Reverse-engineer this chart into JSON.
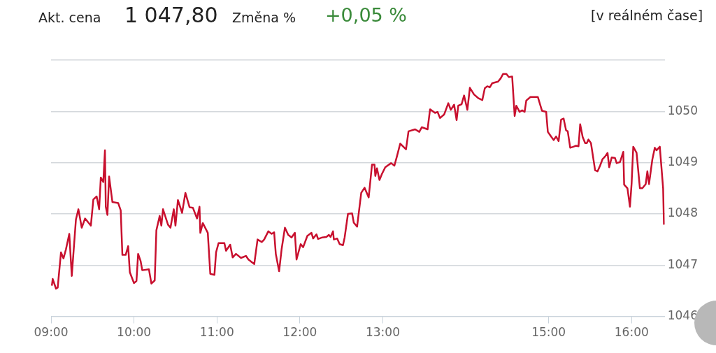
{
  "chart_data": {
    "type": "line",
    "annotations": [
      "Akt. cena",
      "1 047,80",
      "Změna %",
      "+0,05 %",
      "[v reálném čase]"
    ],
    "series": [
      {
        "color": "#c8102e",
        "x": [
          9.01,
          9.02,
          9.06,
          9.08,
          9.12,
          9.15,
          9.18,
          9.22,
          9.25,
          9.3,
          9.33,
          9.37,
          9.41,
          9.48,
          9.51,
          9.55,
          9.58,
          9.6,
          9.63,
          9.65,
          9.66,
          9.68,
          9.7,
          9.74,
          9.81,
          9.84,
          9.86,
          9.9,
          9.93,
          9.95,
          10.0,
          10.03,
          10.05,
          10.08,
          10.1,
          10.18,
          10.21,
          10.25,
          10.27,
          10.31,
          10.33,
          10.35,
          10.41,
          10.44,
          10.48,
          10.5,
          10.53,
          10.58,
          10.62,
          10.67,
          10.71,
          10.76,
          10.79,
          10.8,
          10.83,
          10.89,
          10.92,
          10.97,
          10.99,
          11.02,
          11.09,
          11.11,
          11.16,
          11.19,
          11.23,
          11.29,
          11.35,
          11.38,
          11.45,
          11.49,
          11.54,
          11.57,
          11.62,
          11.66,
          11.69,
          11.71,
          11.75,
          11.78,
          11.82,
          11.86,
          11.9,
          11.94,
          11.96,
          12.01,
          12.04,
          12.09,
          12.14,
          12.16,
          12.2,
          12.22,
          12.27,
          12.32,
          12.35,
          12.37,
          12.4,
          12.41,
          12.45,
          12.48,
          12.52,
          12.54,
          12.58,
          12.63,
          12.65,
          12.69,
          12.74,
          12.78,
          12.83,
          12.87,
          12.9,
          12.91,
          12.93,
          12.96,
          12.99,
          13.03,
          13.1,
          13.14,
          13.17,
          13.21,
          13.28,
          13.31,
          13.39,
          13.44,
          13.47,
          13.54,
          13.57,
          13.63,
          13.66,
          13.69,
          13.74,
          13.79,
          13.82,
          13.86,
          13.89,
          13.91,
          13.95,
          13.98,
          14.02,
          14.05,
          14.1,
          14.15,
          14.2,
          14.23,
          14.26,
          14.29,
          14.32,
          14.39,
          14.42,
          14.45,
          14.49,
          14.52,
          14.56,
          14.59,
          14.61,
          14.65,
          14.68,
          14.71,
          14.73,
          14.78,
          14.87,
          14.92,
          14.97,
          14.99,
          15.02,
          15.06,
          15.09,
          15.12,
          15.15,
          15.18,
          15.21,
          15.23,
          15.26,
          15.3,
          15.33,
          15.36,
          15.38,
          15.41,
          15.44,
          15.46,
          15.48,
          15.51,
          15.56,
          15.59,
          15.62,
          15.65,
          15.68,
          15.71,
          15.73,
          15.76,
          15.8,
          15.82,
          15.86,
          15.9,
          15.91,
          15.95,
          15.98,
          16.0,
          16.02,
          16.06,
          16.1,
          16.13,
          16.17,
          16.19,
          16.21,
          16.25,
          16.28,
          16.3,
          16.34,
          16.38,
          16.39
        ],
        "values": [
          1046.6,
          1046.73,
          1046.54,
          1046.56,
          1047.25,
          1047.13,
          1047.31,
          1047.61,
          1046.79,
          1047.89,
          1048.09,
          1047.73,
          1047.91,
          1047.77,
          1048.28,
          1048.34,
          1048.09,
          1048.71,
          1048.62,
          1049.24,
          1048.14,
          1047.98,
          1048.73,
          1048.23,
          1048.21,
          1048.07,
          1047.2,
          1047.2,
          1047.37,
          1046.86,
          1046.65,
          1046.69,
          1047.22,
          1047.08,
          1046.9,
          1046.92,
          1046.64,
          1046.7,
          1047.68,
          1047.96,
          1047.77,
          1048.09,
          1047.79,
          1047.73,
          1048.09,
          1047.77,
          1048.27,
          1048.02,
          1048.41,
          1048.13,
          1048.12,
          1047.91,
          1048.14,
          1047.63,
          1047.82,
          1047.63,
          1046.83,
          1046.81,
          1047.25,
          1047.43,
          1047.43,
          1047.28,
          1047.4,
          1047.15,
          1047.22,
          1047.14,
          1047.18,
          1047.11,
          1047.02,
          1047.5,
          1047.45,
          1047.5,
          1047.66,
          1047.61,
          1047.64,
          1047.22,
          1046.88,
          1047.31,
          1047.73,
          1047.59,
          1047.54,
          1047.63,
          1047.11,
          1047.41,
          1047.35,
          1047.57,
          1047.63,
          1047.52,
          1047.6,
          1047.51,
          1047.54,
          1047.55,
          1047.59,
          1047.55,
          1047.66,
          1047.5,
          1047.52,
          1047.41,
          1047.39,
          1047.54,
          1048.0,
          1048.01,
          1047.83,
          1047.75,
          1048.41,
          1048.51,
          1048.32,
          1048.96,
          1048.96,
          1048.74,
          1048.89,
          1048.66,
          1048.78,
          1048.91,
          1048.99,
          1048.94,
          1049.12,
          1049.37,
          1049.26,
          1049.61,
          1049.65,
          1049.6,
          1049.69,
          1049.65,
          1050.04,
          1049.97,
          1049.99,
          1049.87,
          1049.94,
          1050.16,
          1050.03,
          1050.13,
          1049.83,
          1050.11,
          1050.14,
          1050.31,
          1050.03,
          1050.46,
          1050.33,
          1050.26,
          1050.22,
          1050.45,
          1050.49,
          1050.47,
          1050.55,
          1050.58,
          1050.64,
          1050.73,
          1050.73,
          1050.67,
          1050.68,
          1049.91,
          1050.11,
          1049.99,
          1050.02,
          1049.99,
          1050.21,
          1050.28,
          1050.28,
          1050.01,
          1049.99,
          1049.6,
          1049.53,
          1049.44,
          1049.51,
          1049.42,
          1049.84,
          1049.86,
          1049.63,
          1049.61,
          1049.29,
          1049.31,
          1049.33,
          1049.32,
          1049.75,
          1049.5,
          1049.38,
          1049.38,
          1049.45,
          1049.38,
          1048.85,
          1048.83,
          1048.94,
          1049.07,
          1049.12,
          1049.19,
          1048.91,
          1049.1,
          1049.09,
          1048.99,
          1049.01,
          1049.21,
          1048.57,
          1048.5,
          1048.14,
          1048.59,
          1049.31,
          1049.19,
          1048.5,
          1048.5,
          1048.58,
          1048.83,
          1048.58,
          1049.06,
          1049.29,
          1049.24,
          1049.31,
          1048.5,
          1047.79
        ]
      }
    ],
    "xlim": [
      9,
      16.4
    ],
    "xticks": [
      {
        "value": 9,
        "label": "09:00"
      },
      {
        "value": 10,
        "label": "10:00"
      },
      {
        "value": 11,
        "label": "11:00"
      },
      {
        "value": 12,
        "label": "12:00"
      },
      {
        "value": 13,
        "label": "13:00"
      },
      {
        "value": 15,
        "label": "15:00"
      },
      {
        "value": 16,
        "label": "16:00"
      }
    ],
    "ylim": [
      1046,
      1051
    ],
    "yticks": [
      1046,
      1047,
      1048,
      1049,
      1050,
      {
        "value": 1051,
        "label": null
      }
    ],
    "grid": "y",
    "legend": false,
    "marker": "none",
    "line_style": "solid"
  }
}
